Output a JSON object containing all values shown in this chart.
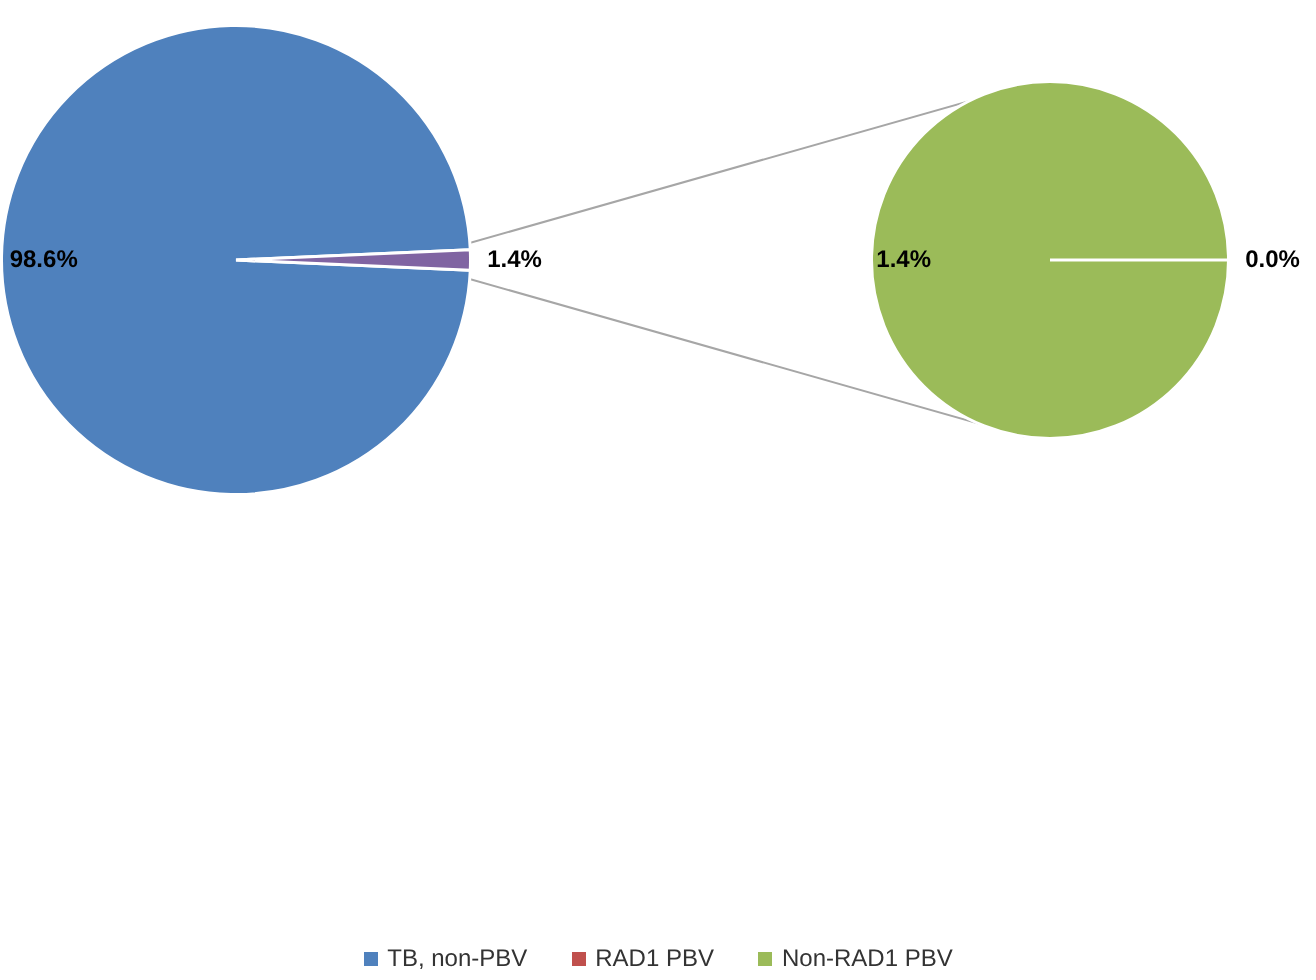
{
  "chart_data": [
    {
      "type": "pie",
      "categories": [
        "TB, non-PBV",
        null
      ],
      "values": [
        98.6,
        1.4
      ],
      "colors": [
        "#4f81bd",
        "#8064a2"
      ],
      "value_labels": [
        "98.6%",
        "1.4%"
      ],
      "legend": "bottom"
    },
    {
      "type": "pie",
      "categories": [
        "RAD1 PBV",
        "Non-RAD1 PBV"
      ],
      "values": [
        0.0,
        1.4
      ],
      "colors": [
        "#c0504d",
        "#9bbb59"
      ],
      "value_labels": [
        "0.0%",
        "1.4%"
      ],
      "legend": "bottom"
    }
  ]
}
